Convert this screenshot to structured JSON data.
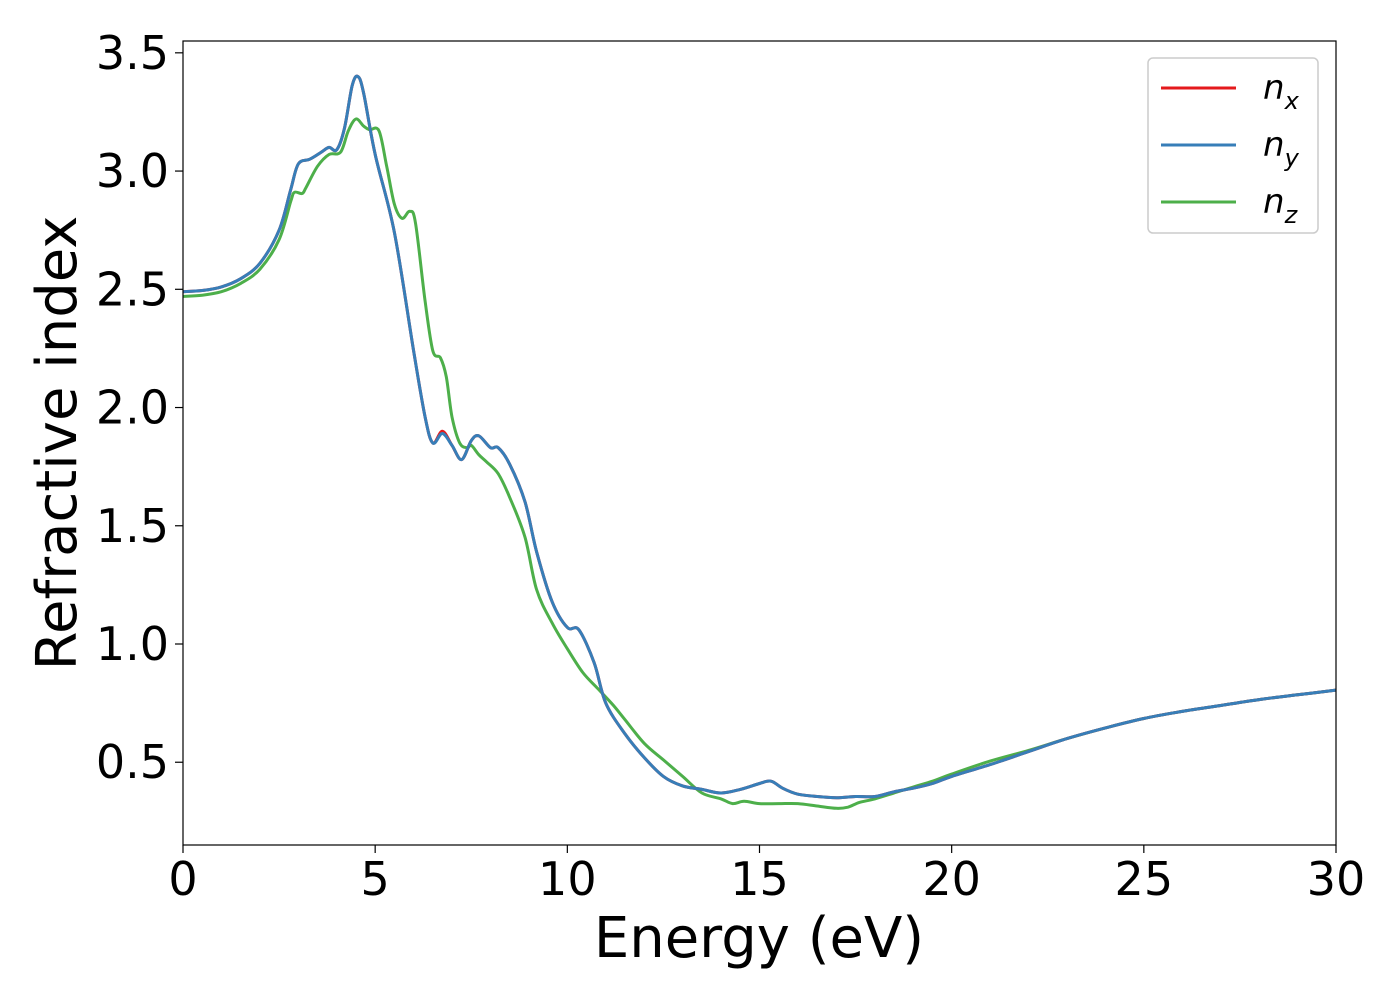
{
  "chart_data": {
    "type": "line",
    "xlabel": "Energy (eV)",
    "ylabel": "Refractive index",
    "xlim": [
      0,
      30
    ],
    "ylim": [
      0.15,
      3.55
    ],
    "xticks": [
      0,
      5,
      10,
      15,
      20,
      25,
      30
    ],
    "xtick_labels": [
      "0",
      "5",
      "10",
      "15",
      "20",
      "25",
      "30"
    ],
    "yticks": [
      0.5,
      1.0,
      1.5,
      2.0,
      2.5,
      3.0,
      3.5
    ],
    "ytick_labels": [
      "0.5",
      "1.0",
      "1.5",
      "2.0",
      "2.5",
      "3.0",
      "3.5"
    ],
    "grid": false,
    "legend": {
      "position": "top-right",
      "entries": [
        {
          "base": "n",
          "sub": "x"
        },
        {
          "base": "n",
          "sub": "y"
        },
        {
          "base": "n",
          "sub": "z"
        }
      ]
    },
    "series": [
      {
        "key": "nx",
        "color": "#e41a1c",
        "points": [
          [
            0,
            2.49
          ],
          [
            0.5,
            2.495
          ],
          [
            1,
            2.51
          ],
          [
            1.5,
            2.545
          ],
          [
            2,
            2.61
          ],
          [
            2.5,
            2.75
          ],
          [
            2.8,
            2.92
          ],
          [
            3.0,
            3.03
          ],
          [
            3.3,
            3.05
          ],
          [
            3.6,
            3.08
          ],
          [
            3.8,
            3.1
          ],
          [
            4.0,
            3.09
          ],
          [
            4.2,
            3.18
          ],
          [
            4.4,
            3.36
          ],
          [
            4.55,
            3.4
          ],
          [
            4.7,
            3.33
          ],
          [
            5.0,
            3.07
          ],
          [
            5.5,
            2.74
          ],
          [
            6.0,
            2.24
          ],
          [
            6.3,
            1.96
          ],
          [
            6.5,
            1.85
          ],
          [
            6.75,
            1.9
          ],
          [
            7.0,
            1.84
          ],
          [
            7.25,
            1.78
          ],
          [
            7.5,
            1.86
          ],
          [
            7.7,
            1.88
          ],
          [
            8.0,
            1.83
          ],
          [
            8.2,
            1.83
          ],
          [
            8.5,
            1.76
          ],
          [
            8.9,
            1.6
          ],
          [
            9.2,
            1.39
          ],
          [
            9.6,
            1.18
          ],
          [
            10.0,
            1.07
          ],
          [
            10.3,
            1.06
          ],
          [
            10.7,
            0.92
          ],
          [
            11.0,
            0.75
          ],
          [
            11.5,
            0.62
          ],
          [
            12.0,
            0.52
          ],
          [
            12.5,
            0.44
          ],
          [
            13.0,
            0.4
          ],
          [
            13.5,
            0.385
          ],
          [
            14.0,
            0.37
          ],
          [
            14.5,
            0.385
          ],
          [
            15.0,
            0.41
          ],
          [
            15.3,
            0.42
          ],
          [
            15.6,
            0.39
          ],
          [
            16.0,
            0.365
          ],
          [
            16.5,
            0.355
          ],
          [
            17.0,
            0.35
          ],
          [
            17.5,
            0.355
          ],
          [
            18.0,
            0.355
          ],
          [
            18.5,
            0.375
          ],
          [
            19.0,
            0.39
          ],
          [
            19.5,
            0.41
          ],
          [
            20.0,
            0.44
          ],
          [
            21.0,
            0.49
          ],
          [
            22.0,
            0.545
          ],
          [
            23.0,
            0.6
          ],
          [
            24.0,
            0.645
          ],
          [
            25.0,
            0.685
          ],
          [
            26.0,
            0.715
          ],
          [
            27.0,
            0.74
          ],
          [
            28.0,
            0.765
          ],
          [
            29.0,
            0.785
          ],
          [
            30.0,
            0.805
          ]
        ]
      },
      {
        "key": "ny",
        "color": "#377eb8",
        "points": [
          [
            0,
            2.49
          ],
          [
            0.5,
            2.495
          ],
          [
            1,
            2.51
          ],
          [
            1.5,
            2.545
          ],
          [
            2,
            2.61
          ],
          [
            2.5,
            2.75
          ],
          [
            2.8,
            2.92
          ],
          [
            3.0,
            3.03
          ],
          [
            3.3,
            3.05
          ],
          [
            3.6,
            3.08
          ],
          [
            3.8,
            3.1
          ],
          [
            4.0,
            3.09
          ],
          [
            4.2,
            3.18
          ],
          [
            4.4,
            3.36
          ],
          [
            4.55,
            3.4
          ],
          [
            4.7,
            3.33
          ],
          [
            5.0,
            3.07
          ],
          [
            5.5,
            2.74
          ],
          [
            6.0,
            2.24
          ],
          [
            6.3,
            1.96
          ],
          [
            6.5,
            1.85
          ],
          [
            6.75,
            1.89
          ],
          [
            7.0,
            1.84
          ],
          [
            7.25,
            1.78
          ],
          [
            7.5,
            1.86
          ],
          [
            7.7,
            1.88
          ],
          [
            8.0,
            1.83
          ],
          [
            8.2,
            1.83
          ],
          [
            8.5,
            1.76
          ],
          [
            8.9,
            1.6
          ],
          [
            9.2,
            1.39
          ],
          [
            9.6,
            1.18
          ],
          [
            10.0,
            1.07
          ],
          [
            10.3,
            1.06
          ],
          [
            10.7,
            0.92
          ],
          [
            11.0,
            0.75
          ],
          [
            11.5,
            0.62
          ],
          [
            12.0,
            0.52
          ],
          [
            12.5,
            0.44
          ],
          [
            13.0,
            0.4
          ],
          [
            13.5,
            0.385
          ],
          [
            14.0,
            0.37
          ],
          [
            14.5,
            0.385
          ],
          [
            15.0,
            0.41
          ],
          [
            15.3,
            0.42
          ],
          [
            15.6,
            0.39
          ],
          [
            16.0,
            0.365
          ],
          [
            16.5,
            0.355
          ],
          [
            17.0,
            0.35
          ],
          [
            17.5,
            0.355
          ],
          [
            18.0,
            0.355
          ],
          [
            18.5,
            0.375
          ],
          [
            19.0,
            0.39
          ],
          [
            19.5,
            0.41
          ],
          [
            20.0,
            0.44
          ],
          [
            21.0,
            0.49
          ],
          [
            22.0,
            0.545
          ],
          [
            23.0,
            0.6
          ],
          [
            24.0,
            0.645
          ],
          [
            25.0,
            0.685
          ],
          [
            26.0,
            0.715
          ],
          [
            27.0,
            0.74
          ],
          [
            28.0,
            0.765
          ],
          [
            29.0,
            0.785
          ],
          [
            30.0,
            0.805
          ]
        ]
      },
      {
        "key": "nz",
        "color": "#4daf4a",
        "points": [
          [
            0,
            2.47
          ],
          [
            0.5,
            2.475
          ],
          [
            1,
            2.49
          ],
          [
            1.5,
            2.525
          ],
          [
            2,
            2.585
          ],
          [
            2.5,
            2.71
          ],
          [
            2.8,
            2.87
          ],
          [
            2.9,
            2.91
          ],
          [
            3.1,
            2.905
          ],
          [
            3.2,
            2.93
          ],
          [
            3.5,
            3.02
          ],
          [
            3.8,
            3.07
          ],
          [
            4.1,
            3.08
          ],
          [
            4.3,
            3.17
          ],
          [
            4.5,
            3.22
          ],
          [
            4.7,
            3.19
          ],
          [
            4.85,
            3.175
          ],
          [
            5.1,
            3.17
          ],
          [
            5.3,
            3.02
          ],
          [
            5.5,
            2.86
          ],
          [
            5.7,
            2.8
          ],
          [
            5.9,
            2.83
          ],
          [
            6.05,
            2.78
          ],
          [
            6.3,
            2.45
          ],
          [
            6.5,
            2.24
          ],
          [
            6.7,
            2.21
          ],
          [
            6.85,
            2.13
          ],
          [
            7.0,
            1.96
          ],
          [
            7.2,
            1.85
          ],
          [
            7.4,
            1.83
          ],
          [
            7.5,
            1.84
          ],
          [
            7.7,
            1.8
          ],
          [
            7.9,
            1.77
          ],
          [
            8.2,
            1.72
          ],
          [
            8.5,
            1.62
          ],
          [
            8.9,
            1.45
          ],
          [
            9.2,
            1.23
          ],
          [
            9.6,
            1.09
          ],
          [
            10.0,
            0.98
          ],
          [
            10.4,
            0.88
          ],
          [
            10.8,
            0.81
          ],
          [
            11.2,
            0.74
          ],
          [
            11.5,
            0.68
          ],
          [
            12.0,
            0.58
          ],
          [
            12.5,
            0.51
          ],
          [
            13.0,
            0.44
          ],
          [
            13.5,
            0.37
          ],
          [
            14.0,
            0.345
          ],
          [
            14.3,
            0.325
          ],
          [
            14.6,
            0.335
          ],
          [
            15.0,
            0.325
          ],
          [
            15.5,
            0.325
          ],
          [
            16.0,
            0.325
          ],
          [
            16.5,
            0.315
          ],
          [
            17.0,
            0.305
          ],
          [
            17.3,
            0.31
          ],
          [
            17.6,
            0.33
          ],
          [
            18.0,
            0.345
          ],
          [
            18.5,
            0.37
          ],
          [
            19.0,
            0.395
          ],
          [
            19.5,
            0.42
          ],
          [
            20.0,
            0.45
          ],
          [
            21.0,
            0.505
          ],
          [
            22.0,
            0.55
          ],
          [
            23.0,
            0.6
          ],
          [
            24.0,
            0.645
          ],
          [
            25.0,
            0.685
          ],
          [
            26.0,
            0.715
          ],
          [
            27.0,
            0.74
          ],
          [
            28.0,
            0.765
          ],
          [
            29.0,
            0.785
          ],
          [
            30.0,
            0.805
          ]
        ]
      }
    ]
  }
}
